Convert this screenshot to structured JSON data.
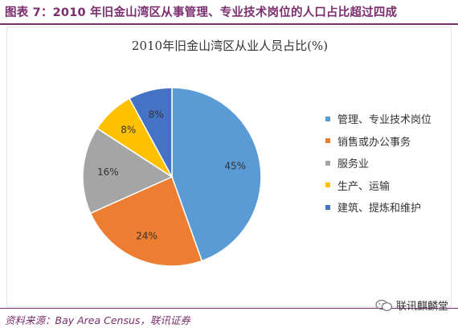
{
  "figure_title": "图表 7：2010 年旧金山湾区从事管理、专业技术岗位的人口占比超过四成",
  "source": "资料来源：Bay Area Census，联讯证券",
  "brand": {
    "text": "联讯麒麟堂",
    "icon": "wechat-icon"
  },
  "colors": {
    "accent": "#7a2e6e"
  },
  "chart_data": {
    "type": "pie",
    "title": "2010年旧金山湾区从业人员占比(%)",
    "legend_position": "right",
    "slices": [
      {
        "label": "管理、专业技术岗位",
        "value": 45,
        "display": "45%",
        "color": "#5b9bd5"
      },
      {
        "label": "销售或办公事务",
        "value": 24,
        "display": "24%",
        "color": "#ed7d31"
      },
      {
        "label": "服务业",
        "value": 16,
        "display": "16%",
        "color": "#a5a5a5"
      },
      {
        "label": "生产、运输",
        "value": 8,
        "display": "8%",
        "color": "#ffc000"
      },
      {
        "label": "建筑、提炼和维护",
        "value": 8,
        "display": "8%",
        "color": "#4472c4"
      }
    ]
  }
}
